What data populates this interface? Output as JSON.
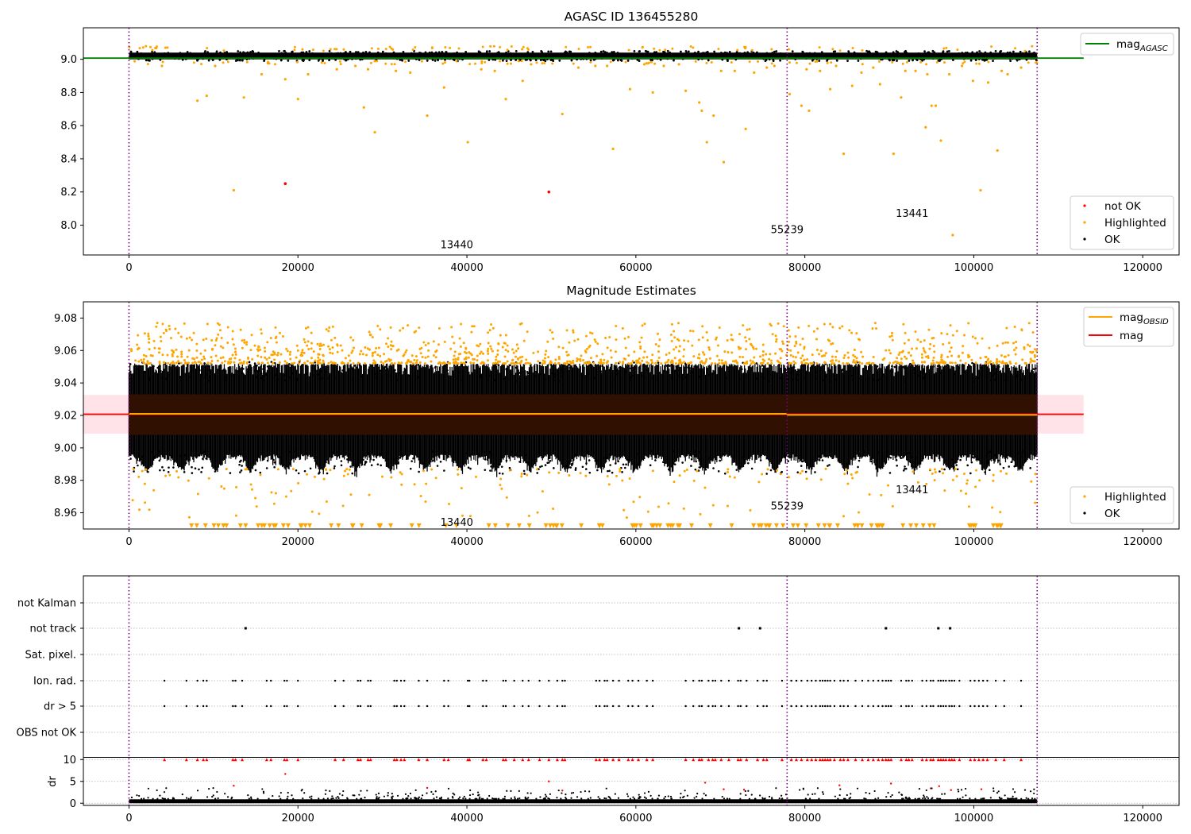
{
  "figure_title": "AGASC ID 136455280",
  "colors": {
    "ok": "#000000",
    "highlighted": "#ffa500",
    "not_ok": "#ff0000",
    "mag_agasc": "#008000",
    "mag_obsid": "#ffa500",
    "mag": "#ff0000",
    "band_fill": "#ffc0cb",
    "obs_band_fill": "#301000",
    "obs_boundary": "#800080",
    "grid": "#b0b0b0"
  },
  "chart_data": [
    {
      "id": "agasc-panel",
      "type": "scatter",
      "title": "",
      "xlabel": "",
      "ylabel": "",
      "xlim": [
        -5400,
        124300
      ],
      "ylim": [
        7.82,
        9.19
      ],
      "xticks": [
        0,
        20000,
        40000,
        60000,
        80000,
        100000,
        120000
      ],
      "xtick_labels": [
        "0",
        "20000",
        "40000",
        "60000",
        "80000",
        "100000",
        "120000"
      ],
      "yticks": [
        8.0,
        8.2,
        8.4,
        8.6,
        8.8,
        9.0
      ],
      "ytick_labels": [
        "8.0",
        "8.2",
        "8.4",
        "8.6",
        "8.8",
        "9.0"
      ],
      "obs_boundaries": [
        0,
        77900,
        107500
      ],
      "obs_labels": [
        {
          "text": "13440",
          "x": 38800,
          "y": 7.88
        },
        {
          "text": "55239",
          "x": 77900,
          "y": 7.97
        },
        {
          "text": "13441",
          "x": 92700,
          "y": 8.07
        }
      ],
      "mag_agasc_line": {
        "y": 9.007,
        "x": [
          -5400,
          113000
        ]
      },
      "ok_band": {
        "y_range": [
          8.99,
          9.05
        ],
        "x_range": [
          0,
          107500
        ]
      },
      "series": [
        {
          "name": "not OK",
          "points": [
            [
              18500,
              8.25
            ],
            [
              49700,
              8.2
            ]
          ]
        },
        {
          "name": "Highlighted",
          "points": [
            [
              12400,
              8.21
            ],
            [
              40100,
              8.5
            ],
            [
              57300,
              8.46
            ],
            [
              68400,
              8.5
            ],
            [
              70400,
              8.38
            ],
            [
              29100,
              8.56
            ],
            [
              35300,
              8.66
            ],
            [
              84600,
              8.43
            ],
            [
              90500,
              8.43
            ],
            [
              94300,
              8.59
            ],
            [
              96100,
              8.51
            ],
            [
              102800,
              8.45
            ],
            [
              100800,
              8.21
            ],
            [
              97500,
              7.94
            ],
            [
              8100,
              8.75
            ],
            [
              9200,
              8.78
            ],
            [
              13600,
              8.77
            ],
            [
              20000,
              8.76
            ],
            [
              27800,
              8.71
            ],
            [
              37300,
              8.83
            ],
            [
              44600,
              8.76
            ],
            [
              46600,
              8.87
            ],
            [
              51300,
              8.67
            ],
            [
              59300,
              8.82
            ],
            [
              62000,
              8.8
            ],
            [
              65900,
              8.81
            ],
            [
              67500,
              8.74
            ],
            [
              67800,
              8.69
            ],
            [
              69200,
              8.66
            ],
            [
              73000,
              8.58
            ],
            [
              75500,
              8.95
            ],
            [
              78200,
              8.79
            ],
            [
              79600,
              8.72
            ],
            [
              80500,
              8.69
            ],
            [
              81800,
              8.93
            ],
            [
              83000,
              8.82
            ],
            [
              85600,
              8.84
            ],
            [
              88900,
              8.85
            ],
            [
              91400,
              8.77
            ],
            [
              93100,
              8.93
            ],
            [
              95000,
              8.72
            ],
            [
              95500,
              8.72
            ],
            [
              97100,
              8.91
            ],
            [
              99900,
              8.87
            ],
            [
              101700,
              8.86
            ],
            [
              104000,
              8.91
            ],
            [
              3900,
              8.96
            ],
            [
              10200,
              8.96
            ],
            [
              15700,
              8.91
            ],
            [
              18500,
              8.88
            ],
            [
              21200,
              8.91
            ],
            [
              24600,
              8.94
            ],
            [
              26800,
              8.96
            ],
            [
              28300,
              8.94
            ],
            [
              31600,
              8.93
            ],
            [
              33300,
              8.92
            ],
            [
              41700,
              8.94
            ],
            [
              43300,
              8.93
            ],
            [
              47600,
              8.97
            ],
            [
              53200,
              8.95
            ],
            [
              55200,
              8.96
            ],
            [
              56600,
              8.96
            ],
            [
              61000,
              8.97
            ],
            [
              63300,
              8.96
            ],
            [
              65100,
              8.97
            ],
            [
              70100,
              8.93
            ],
            [
              71700,
              8.93
            ],
            [
              74000,
              8.92
            ],
            [
              76400,
              8.96
            ],
            [
              80200,
              8.94
            ],
            [
              83700,
              8.96
            ],
            [
              86700,
              8.92
            ],
            [
              88100,
              8.95
            ],
            [
              91900,
              8.93
            ],
            [
              94500,
              8.91
            ],
            [
              98600,
              8.96
            ],
            [
              103300,
              8.93
            ],
            [
              105600,
              8.95
            ]
          ]
        },
        {
          "name": "OK",
          "y_range": [
            8.99,
            9.05
          ],
          "x_range": [
            0,
            107500
          ]
        }
      ],
      "legend_upper": {
        "location": "upper right",
        "entries": [
          {
            "label": "mag",
            "sub": "AGASC"
          }
        ]
      },
      "legend_lower": {
        "location": "lower right",
        "entries": [
          "not OK",
          "Highlighted",
          "OK"
        ]
      }
    },
    {
      "id": "estimates-panel",
      "type": "scatter",
      "title": "Magnitude Estimates",
      "xlabel": "",
      "ylabel": "",
      "xlim": [
        -5400,
        124300
      ],
      "ylim": [
        8.95,
        9.09
      ],
      "xticks": [
        0,
        20000,
        40000,
        60000,
        80000,
        100000,
        120000
      ],
      "xtick_labels": [
        "0",
        "20000",
        "40000",
        "60000",
        "80000",
        "100000",
        "120000"
      ],
      "yticks": [
        8.96,
        8.98,
        9.0,
        9.02,
        9.04,
        9.06,
        9.08
      ],
      "ytick_labels": [
        "8.96",
        "8.98",
        "9.00",
        "9.02",
        "9.04",
        "9.06",
        "9.08"
      ],
      "obs_boundaries": [
        0,
        77900,
        107500
      ],
      "obs_labels": [
        {
          "text": "13440",
          "x": 38800,
          "y": 8.954
        },
        {
          "text": "55239",
          "x": 77900,
          "y": 8.964
        },
        {
          "text": "13441",
          "x": 92700,
          "y": 8.974
        }
      ],
      "mag_line": {
        "y": 9.0207,
        "x": [
          -5400,
          113000
        ]
      },
      "mag_band": {
        "y_range": [
          9.0088,
          9.0326
        ],
        "x_range": [
          -5400,
          113000
        ]
      },
      "obs_band": {
        "y_range": [
          9.008,
          9.033
        ],
        "x_range": [
          0,
          107500
        ]
      },
      "mag_obsid_segments": [
        {
          "x": [
            0,
            77900
          ],
          "y": 9.021
        },
        {
          "x": [
            77900,
            107500
          ],
          "y": 9.0203
        }
      ],
      "ok_scatter": {
        "y_range": [
          8.987,
          9.052
        ],
        "x_range": [
          0,
          107500
        ]
      },
      "highlighted_scatter": {
        "y_upper_range": [
          9.052,
          9.077
        ],
        "y_lower_range": [
          8.954,
          8.987
        ]
      },
      "clipped_marker_y": 8.952,
      "legend_upper": {
        "location": "upper right",
        "entries": [
          {
            "label": "mag",
            "sub": "OBSID"
          },
          {
            "label": "mag",
            "sub": ""
          }
        ]
      },
      "legend_lower": {
        "location": "lower right",
        "entries": [
          "Highlighted",
          "OK"
        ]
      }
    },
    {
      "id": "flags-panel",
      "type": "scatter",
      "title": "",
      "xlabel": "",
      "ylabel": "",
      "xlim": [
        -5400,
        124300
      ],
      "categories": [
        "not Kalman",
        "not track",
        "Sat. pixel.",
        "Ion. rad.",
        "dr > 5",
        "OBS not OK"
      ],
      "obs_boundaries": [
        0,
        77900,
        107500
      ],
      "not_track_x": [
        13800,
        72200,
        74700,
        89600,
        95800,
        97200
      ],
      "ion_rad_x": [
        4200,
        6800,
        8100,
        8800,
        9200,
        12300,
        12600,
        13400,
        16300,
        16800,
        18400,
        18700,
        20000,
        24400,
        25400,
        27100,
        27400,
        28300,
        28600,
        31400,
        31700,
        32200,
        32600,
        34300,
        35300,
        37300,
        37800,
        40100,
        40300,
        41900,
        42300,
        44300,
        44600,
        45600,
        46600,
        47300,
        48600,
        49700,
        50700,
        51300,
        51600,
        55300,
        55700,
        56300,
        56600,
        57300,
        58000,
        59100,
        59600,
        60300,
        61300,
        62000,
        65900,
        66800,
        67500,
        67800,
        68600,
        69100,
        69400,
        70100,
        71000,
        72100,
        72400,
        73100,
        74400,
        75100,
        75500,
        77300,
        78400,
        79000,
        79600,
        80300,
        80800,
        81300,
        81800,
        82100,
        82400,
        82700,
        83000,
        83500,
        84200,
        84600,
        85100,
        86000,
        86800,
        87500,
        88100,
        88700,
        89200,
        89600,
        89900,
        90200,
        91400,
        92000,
        92300,
        92700,
        93900,
        94400,
        94900,
        95200,
        95800,
        96100,
        96400,
        96700,
        97100,
        97400,
        97700,
        98300,
        99600,
        100100,
        100600,
        101100,
        101600,
        102600,
        103600,
        105600
      ],
      "dr_ylim": [
        -0.5,
        10.5
      ],
      "dr_yticks": [
        0,
        5,
        10
      ],
      "dr_ytick_labels": [
        "0",
        "5",
        "10"
      ],
      "dr_ylabel": "dr",
      "dr_red_points": [
        [
          12400,
          4.0
        ],
        [
          18500,
          6.7
        ],
        [
          35300,
          3.5
        ],
        [
          49700,
          5.0
        ],
        [
          51300,
          2.9
        ],
        [
          70400,
          3.2
        ],
        [
          72800,
          3.1
        ],
        [
          68200,
          4.7
        ],
        [
          84100,
          4.1
        ],
        [
          90200,
          4.5
        ],
        [
          94900,
          3.4
        ],
        [
          95900,
          3.9
        ],
        [
          97300,
          3.0
        ],
        [
          100900,
          3.2
        ]
      ]
    }
  ]
}
